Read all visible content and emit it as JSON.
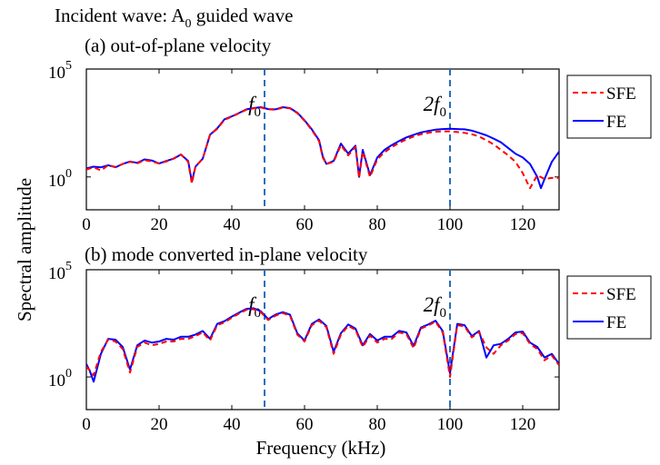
{
  "title_prefix": "Incident wave: A",
  "title_sub": "0",
  "title_suffix": " guided wave",
  "xlabel": "Frequency (kHz)",
  "ylabel": "Spectral amplitude",
  "legend": [
    "SFE",
    "FE"
  ],
  "colors": {
    "SFE": "#ff0000",
    "FE": "#0000ff",
    "marker": "#2a6ebb"
  },
  "chart_data": [
    {
      "type": "line",
      "panel": "a",
      "title": "(a) out-of-plane velocity",
      "xlim": [
        0,
        130
      ],
      "ylim": [
        0.03,
        100000
      ],
      "yscale": "log",
      "xticks": [
        0,
        20,
        40,
        60,
        80,
        100,
        120
      ],
      "yticks": [
        {
          "base": "10",
          "exp": "0"
        },
        {
          "base": "10",
          "exp": "5"
        }
      ],
      "markers": [
        {
          "x": 49,
          "base": "f",
          "sub": "0",
          "prefix": ""
        },
        {
          "x": 100,
          "base": "f",
          "sub": "0",
          "prefix": "2"
        }
      ],
      "legend_placement": "outside-right",
      "series": [
        {
          "name": "SFE",
          "style": "dashed",
          "x": [
            0,
            2,
            4,
            6,
            8,
            10,
            12,
            14,
            16,
            18,
            20,
            22,
            24,
            26,
            28,
            29,
            30,
            32,
            34,
            36,
            38,
            40,
            42,
            44,
            46,
            48,
            50,
            52,
            54,
            56,
            58,
            60,
            62,
            64,
            65,
            66,
            68,
            70,
            72,
            74,
            75,
            76,
            78,
            80,
            82,
            84,
            86,
            88,
            90,
            92,
            94,
            96,
            98,
            100,
            102,
            104,
            106,
            108,
            110,
            112,
            114,
            116,
            118,
            120,
            122,
            124,
            126,
            128,
            130
          ],
          "y": [
            2.2,
            2.8,
            2.0,
            3.5,
            2.9,
            4.0,
            5.0,
            4.3,
            6.0,
            5.2,
            4.2,
            5.2,
            7.2,
            11,
            5,
            0.5,
            3,
            7,
            90,
            170,
            450,
            620,
            900,
            1300,
            1500,
            1650,
            1350,
            1300,
            1650,
            1500,
            900,
            400,
            150,
            45,
            8,
            4,
            5,
            30,
            10,
            25,
            0.9,
            15,
            1,
            6.5,
            14,
            24,
            38,
            55,
            75,
            95,
            110,
            125,
            130,
            130,
            120,
            110,
            95,
            75,
            50,
            32,
            18,
            10,
            5,
            1.5,
            0.3,
            1.2,
            0.8,
            0.9,
            0.9
          ]
        },
        {
          "name": "FE",
          "style": "solid",
          "x": [
            0,
            2,
            4,
            6,
            8,
            10,
            12,
            14,
            16,
            18,
            20,
            22,
            24,
            26,
            28,
            29,
            30,
            32,
            34,
            36,
            38,
            40,
            42,
            44,
            46,
            48,
            50,
            52,
            54,
            56,
            58,
            60,
            62,
            64,
            65,
            66,
            68,
            70,
            72,
            74,
            75,
            76,
            78,
            80,
            82,
            84,
            86,
            88,
            90,
            92,
            94,
            96,
            98,
            100,
            102,
            104,
            106,
            108,
            110,
            112,
            114,
            116,
            118,
            120,
            122,
            124,
            125,
            126,
            128,
            130
          ],
          "y": [
            2.5,
            3.0,
            2.8,
            3.5,
            2.8,
            4.0,
            5.2,
            4.5,
            6.5,
            5.8,
            4.2,
            5.5,
            7.0,
            11,
            5.5,
            0.6,
            3,
            7,
            90,
            180,
            470,
            640,
            920,
            1350,
            1550,
            1700,
            1400,
            1350,
            1700,
            1550,
            950,
            420,
            160,
            50,
            9,
            4,
            5.5,
            35,
            12,
            28,
            1,
            18,
            1.2,
            8,
            18,
            30,
            46,
            68,
            90,
            115,
            135,
            155,
            165,
            170,
            165,
            160,
            140,
            110,
            85,
            60,
            40,
            22,
            12,
            8,
            4,
            1,
            0.3,
            0.8,
            5,
            15
          ]
        }
      ]
    },
    {
      "type": "line",
      "panel": "b",
      "title": "(b) mode converted in-plane velocity",
      "xlim": [
        0,
        130
      ],
      "ylim": [
        0.03,
        100000
      ],
      "yscale": "log",
      "xticks": [
        0,
        20,
        40,
        60,
        80,
        100,
        120
      ],
      "yticks": [
        {
          "base": "10",
          "exp": "0"
        },
        {
          "base": "10",
          "exp": "5"
        }
      ],
      "markers": [
        {
          "x": 49,
          "base": "f",
          "sub": "0",
          "prefix": ""
        },
        {
          "x": 100,
          "base": "f",
          "sub": "0",
          "prefix": "2"
        }
      ],
      "legend_placement": "outside-right",
      "series": [
        {
          "name": "SFE",
          "style": "dashed",
          "x": [
            0,
            1,
            2,
            4,
            6,
            8,
            10,
            12,
            14,
            16,
            18,
            20,
            22,
            24,
            26,
            28,
            30,
            32,
            34,
            36,
            38,
            40,
            42,
            44,
            46,
            48,
            50,
            52,
            54,
            56,
            58,
            60,
            62,
            64,
            66,
            68,
            70,
            72,
            74,
            76,
            78,
            80,
            82,
            84,
            86,
            88,
            90,
            92,
            94,
            96,
            98,
            100,
            102,
            104,
            106,
            108,
            110,
            112,
            114,
            116,
            118,
            120,
            122,
            124,
            126,
            128,
            130
          ],
          "y": [
            3.0,
            2.0,
            1.2,
            15,
            55,
            45,
            20,
            1.6,
            25,
            40,
            30,
            35,
            45,
            45,
            60,
            60,
            80,
            120,
            50,
            260,
            350,
            580,
            900,
            1350,
            1450,
            1050,
            450,
            720,
            950,
            720,
            95,
            45,
            260,
            420,
            210,
            12,
            95,
            240,
            160,
            25,
            85,
            40,
            60,
            60,
            120,
            100,
            22,
            180,
            250,
            380,
            120,
            1,
            260,
            230,
            70,
            125,
            24,
            12,
            30,
            50,
            100,
            110,
            35,
            20,
            6,
            10,
            3.5
          ]
        },
        {
          "name": "FE",
          "style": "solid",
          "x": [
            0,
            1,
            2,
            4,
            6,
            8,
            10,
            12,
            14,
            16,
            18,
            20,
            22,
            24,
            26,
            28,
            30,
            32,
            34,
            36,
            38,
            40,
            42,
            44,
            46,
            48,
            50,
            52,
            54,
            56,
            58,
            60,
            62,
            64,
            66,
            68,
            70,
            72,
            74,
            76,
            78,
            80,
            82,
            84,
            86,
            88,
            90,
            92,
            94,
            96,
            98,
            100,
            102,
            104,
            106,
            108,
            110,
            112,
            114,
            116,
            118,
            120,
            122,
            124,
            126,
            128,
            130
          ],
          "y": [
            4.0,
            1.8,
            0.6,
            12,
            60,
            55,
            25,
            2.2,
            30,
            50,
            40,
            45,
            60,
            55,
            75,
            75,
            95,
            140,
            60,
            300,
            400,
            650,
            1000,
            1500,
            1600,
            1150,
            500,
            800,
            1050,
            800,
            110,
            50,
            300,
            480,
            240,
            15,
            110,
            280,
            180,
            30,
            100,
            50,
            75,
            75,
            140,
            120,
            28,
            200,
            280,
            420,
            140,
            1.5,
            300,
            260,
            80,
            140,
            8,
            30,
            35,
            60,
            120,
            130,
            40,
            25,
            8,
            12,
            4
          ]
        }
      ]
    }
  ]
}
